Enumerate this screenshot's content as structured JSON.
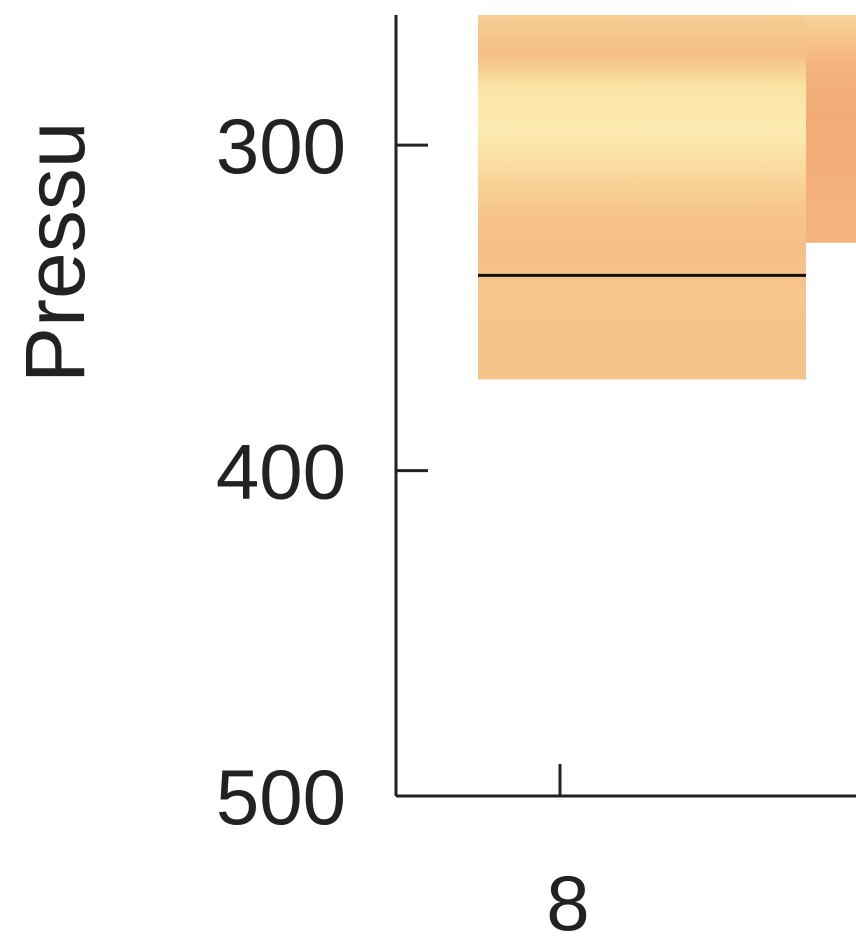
{
  "chart_data": {
    "type": "heatmap",
    "title": "",
    "xlabel": "",
    "ylabel": "Pressu",
    "y_reversed": true,
    "ylim": [
      260,
      500
    ],
    "y_ticks": [
      300,
      400,
      500
    ],
    "x_ticks": [
      8
    ],
    "colors": {
      "light": "#fcebb0",
      "mid": "#f7c98e",
      "dark": "#f3ae79",
      "axis": "#222222",
      "contour": "#111111"
    },
    "columns": [
      {
        "x_start": 7.5,
        "x_end": 9.5,
        "p_top": 260,
        "p_bottom": 372,
        "bands": [
          {
            "p": 260,
            "color": "#f7cf96"
          },
          {
            "p": 272,
            "color": "#f4be88"
          },
          {
            "p": 282,
            "color": "#fbe3a5"
          },
          {
            "p": 295,
            "color": "#fcebb0"
          },
          {
            "p": 308,
            "color": "#f9d99e"
          },
          {
            "p": 320,
            "color": "#f7c68c"
          },
          {
            "p": 332,
            "color": "#f5bd86"
          },
          {
            "p": 345,
            "color": "#f7c68c"
          },
          {
            "p": 358,
            "color": "#f6c48b"
          },
          {
            "p": 372,
            "color": "#f6c48b"
          }
        ]
      },
      {
        "x_start": 9.5,
        "x_end": 11.5,
        "p_top": 260,
        "p_bottom": 330,
        "bands": [
          {
            "p": 260,
            "color": "#f8d59b"
          },
          {
            "p": 275,
            "color": "#f4b47e"
          },
          {
            "p": 290,
            "color": "#f2ab77"
          },
          {
            "p": 305,
            "color": "#f3ae79"
          },
          {
            "p": 318,
            "color": "#f4b27c"
          },
          {
            "p": 330,
            "color": "#f4b27c"
          }
        ]
      }
    ],
    "contour_lines": [
      {
        "p": 340,
        "x_start": 7.5,
        "x_end": 9.5
      }
    ]
  }
}
